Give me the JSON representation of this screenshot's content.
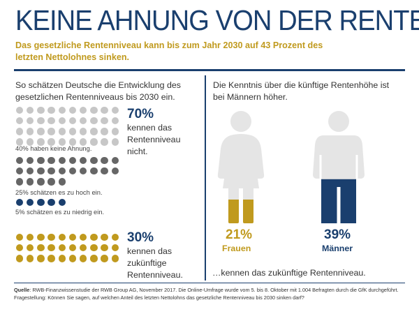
{
  "title": "KEINE AHNUNG VON DER RENTE",
  "subtitle": "Das gesetzliche Rentenniveau kann bis zum Jahr 2030 auf 43 Prozent des letzten Nettolohnes sinken.",
  "left": {
    "intro": "So schätzen Deutsche die Entwicklung des gesetzlichen Rentenniveaus bis 2030 ein.",
    "groups": [
      {
        "label": "40% haben keine Ahnung.",
        "color": "#c7c7c7",
        "count": 40
      },
      {
        "label": "25% schätzen es zu hoch ein.",
        "color": "#666666",
        "count": 25
      },
      {
        "label": "5% schätzen es zu niedrig ein.",
        "color": "#1a3f6e",
        "count": 5
      },
      {
        "label": "",
        "color": "#c09a1e",
        "count": 30
      }
    ],
    "stat1": {
      "pct": "70%",
      "line1": "kennen das",
      "line2": "Rentenniveau",
      "line3": "nicht."
    },
    "stat2": {
      "pct": "30%",
      "line1": "kennen das",
      "line2": "zukünftige",
      "line3": "Rentenniveau."
    }
  },
  "right": {
    "intro": "Die Kenntnis über die künftige Rentenhöhe ist bei Männern höher.",
    "women": {
      "pct": "21%",
      "label": "Frauen",
      "fill_fraction": 0.21,
      "color": "#c09a1e"
    },
    "men": {
      "pct": "39%",
      "label": "Männer",
      "fill_fraction": 0.39,
      "color": "#1a3f6e"
    },
    "caption": "…kennen das zukünftige Rentenniveau."
  },
  "footer": {
    "source_label": "Quelle",
    "source_text": ": RWB-Finanzwissenstudie der RWB Group AG, November 2017. Die Online-Umfrage wurde vom 5. bis 8. Oktober mit 1.004 Befragten durch die GfK durchgeführt.",
    "question": "Fragestellung: Können Sie sagen, auf welchen Anteil des letzten Nettolohns das gesetzliche Rentenniveau bis 2030 sinken darf?"
  },
  "colors": {
    "navy": "#1a3f6e",
    "gold": "#c09a1e",
    "light_gray": "#c7c7c7",
    "dark_gray": "#666666",
    "figure_gray": "#e5e5e5"
  }
}
